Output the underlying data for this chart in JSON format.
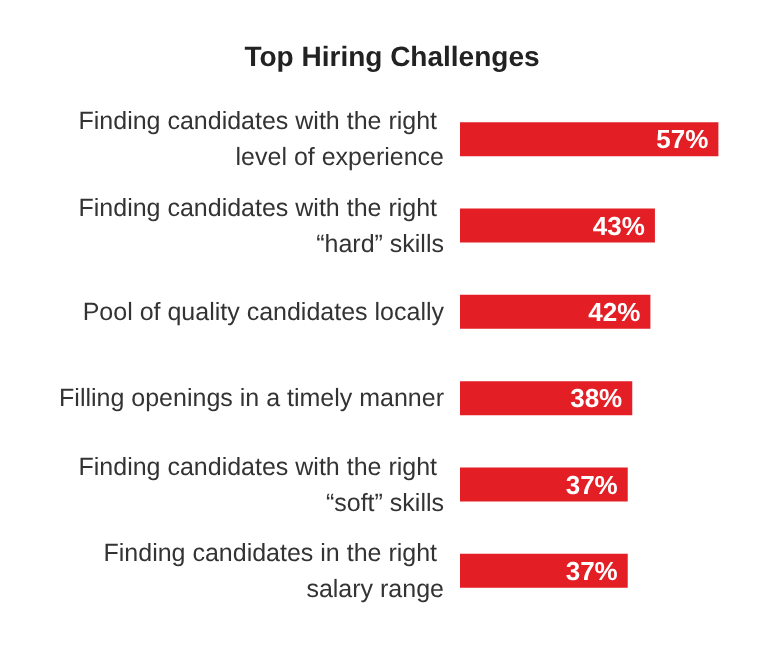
{
  "chart_data": {
    "type": "bar",
    "orientation": "horizontal",
    "title": "Top Hiring Challenges",
    "categories": [
      "Finding candidates with the right level of experience",
      "Finding candidates with the right “hard” skills",
      "Pool of quality candidates locally",
      "Filling openings in a timely manner",
      "Finding candidates with the right “soft” skills",
      "Finding candidates in the right salary range"
    ],
    "values": [
      57,
      43,
      42,
      38,
      37,
      37
    ],
    "value_labels": [
      "57%",
      "43%",
      "42%",
      "38%",
      "37%",
      "37%"
    ],
    "color": "#e31e25"
  }
}
